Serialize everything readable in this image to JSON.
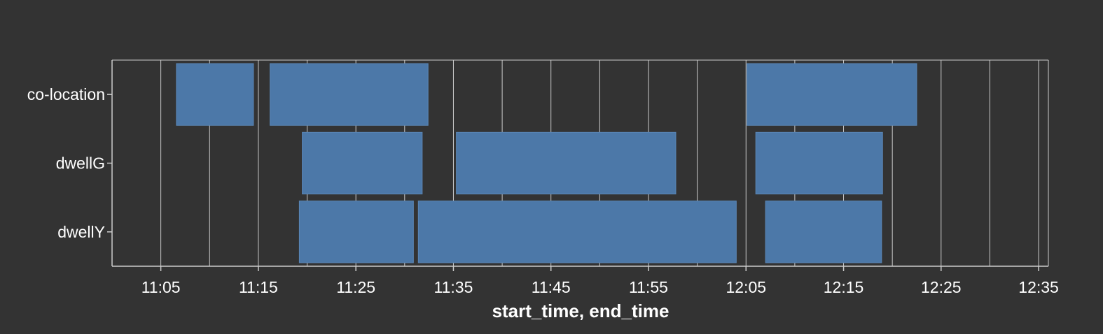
{
  "chart_data": {
    "type": "bar",
    "orientation": "horizontal-range",
    "title": "",
    "xlabel": "start_time, end_time",
    "ylabel": "",
    "categories": [
      "co-location",
      "dwellG",
      "dwellY"
    ],
    "x_ticks": [
      "11:05",
      "11:15",
      "11:25",
      "11:35",
      "11:45",
      "11:55",
      "12:05",
      "12:15",
      "12:25",
      "12:35"
    ],
    "xlim": [
      "10:60",
      "12:36"
    ],
    "grid": true,
    "bar_color": "#4c78a8",
    "background_color": "#333333",
    "ranges": [
      {
        "category": "co-location",
        "start": "11:06.6",
        "end": "11:14.5"
      },
      {
        "category": "co-location",
        "start": "11:16.2",
        "end": "11:32.4"
      },
      {
        "category": "co-location",
        "start": "12:05.1",
        "end": "12:22.5"
      },
      {
        "category": "dwellG",
        "start": "11:19.5",
        "end": "11:31.8"
      },
      {
        "category": "dwellG",
        "start": "11:35.3",
        "end": "11:57.8"
      },
      {
        "category": "dwellG",
        "start": "12:06.0",
        "end": "12:19.0"
      },
      {
        "category": "dwellY",
        "start": "11:19.2",
        "end": "11:30.9"
      },
      {
        "category": "dwellY",
        "start": "11:31.4",
        "end": "12:04.0"
      },
      {
        "category": "dwellY",
        "start": "12:07.0",
        "end": "12:18.9"
      }
    ]
  }
}
